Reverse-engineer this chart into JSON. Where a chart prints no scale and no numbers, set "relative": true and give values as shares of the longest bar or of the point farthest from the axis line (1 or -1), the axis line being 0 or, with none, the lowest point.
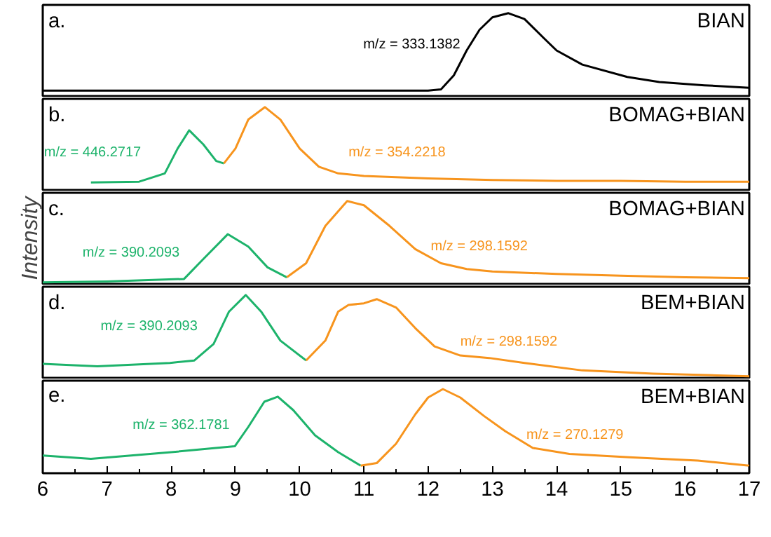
{
  "chart_data": [
    {
      "type": "line",
      "relative": true,
      "title": "BIAN",
      "annotations": [
        "a."
      ],
      "xlim": [
        6,
        17
      ],
      "tick_labels": false,
      "series": [
        {
          "name": "m/z = 333.1382",
          "color": "#000000",
          "x": [
            6,
            12.0,
            12.2,
            12.4,
            12.6,
            12.8,
            13.0,
            13.25,
            13.5,
            13.8,
            14.0,
            14.4,
            15.1,
            15.6,
            16.3,
            17
          ],
          "values": [
            0.065,
            0.065,
            0.08,
            0.25,
            0.55,
            0.8,
            0.95,
            1.0,
            0.93,
            0.7,
            0.55,
            0.38,
            0.23,
            0.17,
            0.13,
            0.1
          ]
        }
      ]
    },
    {
      "type": "line",
      "relative": true,
      "title": "BOMAG+BIAN",
      "annotations": [
        "b."
      ],
      "xlim": [
        6,
        17
      ],
      "tick_labels": false,
      "series": [
        {
          "name": "m/z = 446.2717",
          "color": "#1db36b",
          "x": [
            6.75,
            7.5,
            7.9,
            8.1,
            8.28,
            8.5,
            8.7,
            8.82
          ],
          "values": [
            0.09,
            0.1,
            0.2,
            0.5,
            0.72,
            0.55,
            0.35,
            0.32
          ]
        },
        {
          "name": "m/z = 354.2218",
          "color": "#f7941d",
          "x": [
            8.82,
            9.0,
            9.2,
            9.46,
            9.7,
            10.0,
            10.3,
            10.6,
            11,
            12,
            13,
            14,
            15,
            16,
            17
          ],
          "values": [
            0.32,
            0.5,
            0.85,
            1.0,
            0.85,
            0.5,
            0.28,
            0.2,
            0.17,
            0.14,
            0.12,
            0.11,
            0.11,
            0.1,
            0.1
          ]
        }
      ]
    },
    {
      "type": "line",
      "relative": true,
      "title": "BOMAG+BIAN",
      "annotations": [
        "c."
      ],
      "ylabel": "Intensity",
      "xlim": [
        6,
        17
      ],
      "tick_labels": false,
      "series": [
        {
          "name": "m/z = 390.2093",
          "color": "#1db36b",
          "x": [
            6,
            7,
            8.2,
            8.5,
            8.88,
            9.2,
            9.5,
            9.8
          ],
          "values": [
            0.02,
            0.03,
            0.06,
            0.3,
            0.6,
            0.45,
            0.2,
            0.08
          ]
        },
        {
          "name": "m/z = 298.1592",
          "color": "#f7941d",
          "x": [
            9.8,
            10.1,
            10.4,
            10.74,
            11.0,
            11.4,
            11.8,
            12.2,
            12.6,
            13,
            14,
            15,
            16,
            17
          ],
          "values": [
            0.08,
            0.25,
            0.7,
            1.0,
            0.95,
            0.7,
            0.42,
            0.25,
            0.18,
            0.15,
            0.12,
            0.1,
            0.08,
            0.07
          ]
        }
      ]
    },
    {
      "type": "line",
      "relative": true,
      "title": "BEM+BIAN",
      "annotations": [
        "d."
      ],
      "xlim": [
        6,
        17
      ],
      "tick_labels": false,
      "series": [
        {
          "name": "m/z = 390.2093",
          "color": "#1db36b",
          "x": [
            6,
            6.85,
            7.98,
            8.36,
            8.66,
            8.9,
            9.16,
            9.4,
            9.7,
            10.1
          ],
          "values": [
            0.17,
            0.14,
            0.18,
            0.21,
            0.41,
            0.8,
            1.0,
            0.8,
            0.45,
            0.21
          ]
        },
        {
          "name": "m/z = 298.1592",
          "color": "#f7941d",
          "x": [
            10.1,
            10.4,
            10.6,
            10.76,
            11.0,
            11.2,
            11.5,
            11.8,
            12.1,
            12.5,
            12.95,
            13.5,
            14.4,
            15.5,
            16.5,
            17
          ],
          "values": [
            0.21,
            0.45,
            0.8,
            0.88,
            0.9,
            0.95,
            0.85,
            0.6,
            0.38,
            0.27,
            0.24,
            0.18,
            0.09,
            0.05,
            0.03,
            0.02
          ]
        }
      ]
    },
    {
      "type": "line",
      "relative": true,
      "title": "BEM+BIAN",
      "annotations": [
        "e."
      ],
      "xlim": [
        6,
        17
      ],
      "xticks": [
        6,
        7,
        8,
        9,
        10,
        11,
        12,
        13,
        14,
        15,
        16,
        17
      ],
      "tick_labels": "x",
      "series": [
        {
          "name": "m/z = 362.1781",
          "color": "#1db36b",
          "x": [
            6,
            6.75,
            8,
            8.99,
            9.2,
            9.45,
            9.66,
            9.9,
            10.24,
            10.6,
            10.95
          ],
          "values": [
            0.21,
            0.17,
            0.25,
            0.32,
            0.55,
            0.85,
            0.91,
            0.75,
            0.45,
            0.25,
            0.09
          ]
        },
        {
          "name": "m/z = 270.1279",
          "color": "#f7941d",
          "x": [
            10.95,
            11.2,
            11.5,
            11.8,
            12.0,
            12.23,
            12.5,
            12.87,
            13.2,
            13.63,
            14.2,
            15.13,
            16.2,
            17
          ],
          "values": [
            0.09,
            0.12,
            0.35,
            0.7,
            0.9,
            1.0,
            0.9,
            0.68,
            0.5,
            0.3,
            0.23,
            0.19,
            0.15,
            0.09
          ]
        }
      ]
    }
  ]
}
